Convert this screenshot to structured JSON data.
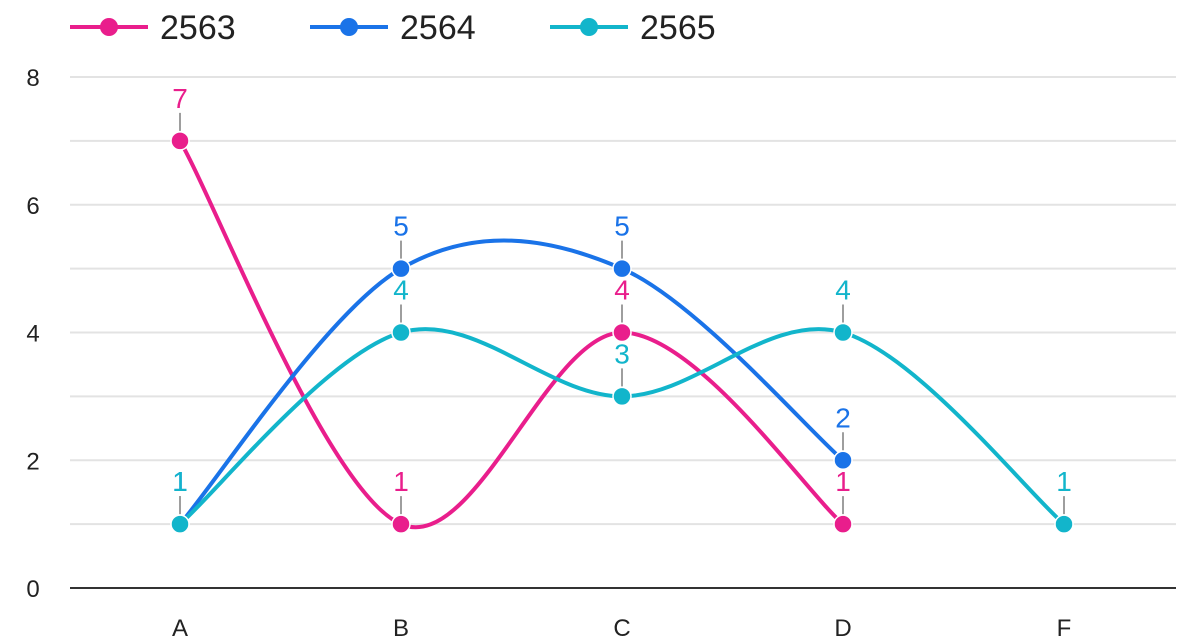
{
  "chart_data": {
    "type": "line",
    "title": "",
    "xlabel": "",
    "ylabel": "",
    "categories": [
      "A",
      "B",
      "C",
      "D",
      "F"
    ],
    "ylim": [
      0,
      8
    ],
    "yticks": [
      0,
      2,
      4,
      6,
      8
    ],
    "grid": true,
    "smooth": true,
    "legend_position": "top-left",
    "series": [
      {
        "name": "2563",
        "color": "#e91e8c",
        "values": [
          7,
          1,
          4,
          1,
          null
        ]
      },
      {
        "name": "2564",
        "color": "#1a73e8",
        "values": [
          1,
          5,
          5,
          2,
          null
        ]
      },
      {
        "name": "2565",
        "color": "#12b5cb",
        "values": [
          1,
          4,
          3,
          4,
          1
        ]
      }
    ]
  }
}
